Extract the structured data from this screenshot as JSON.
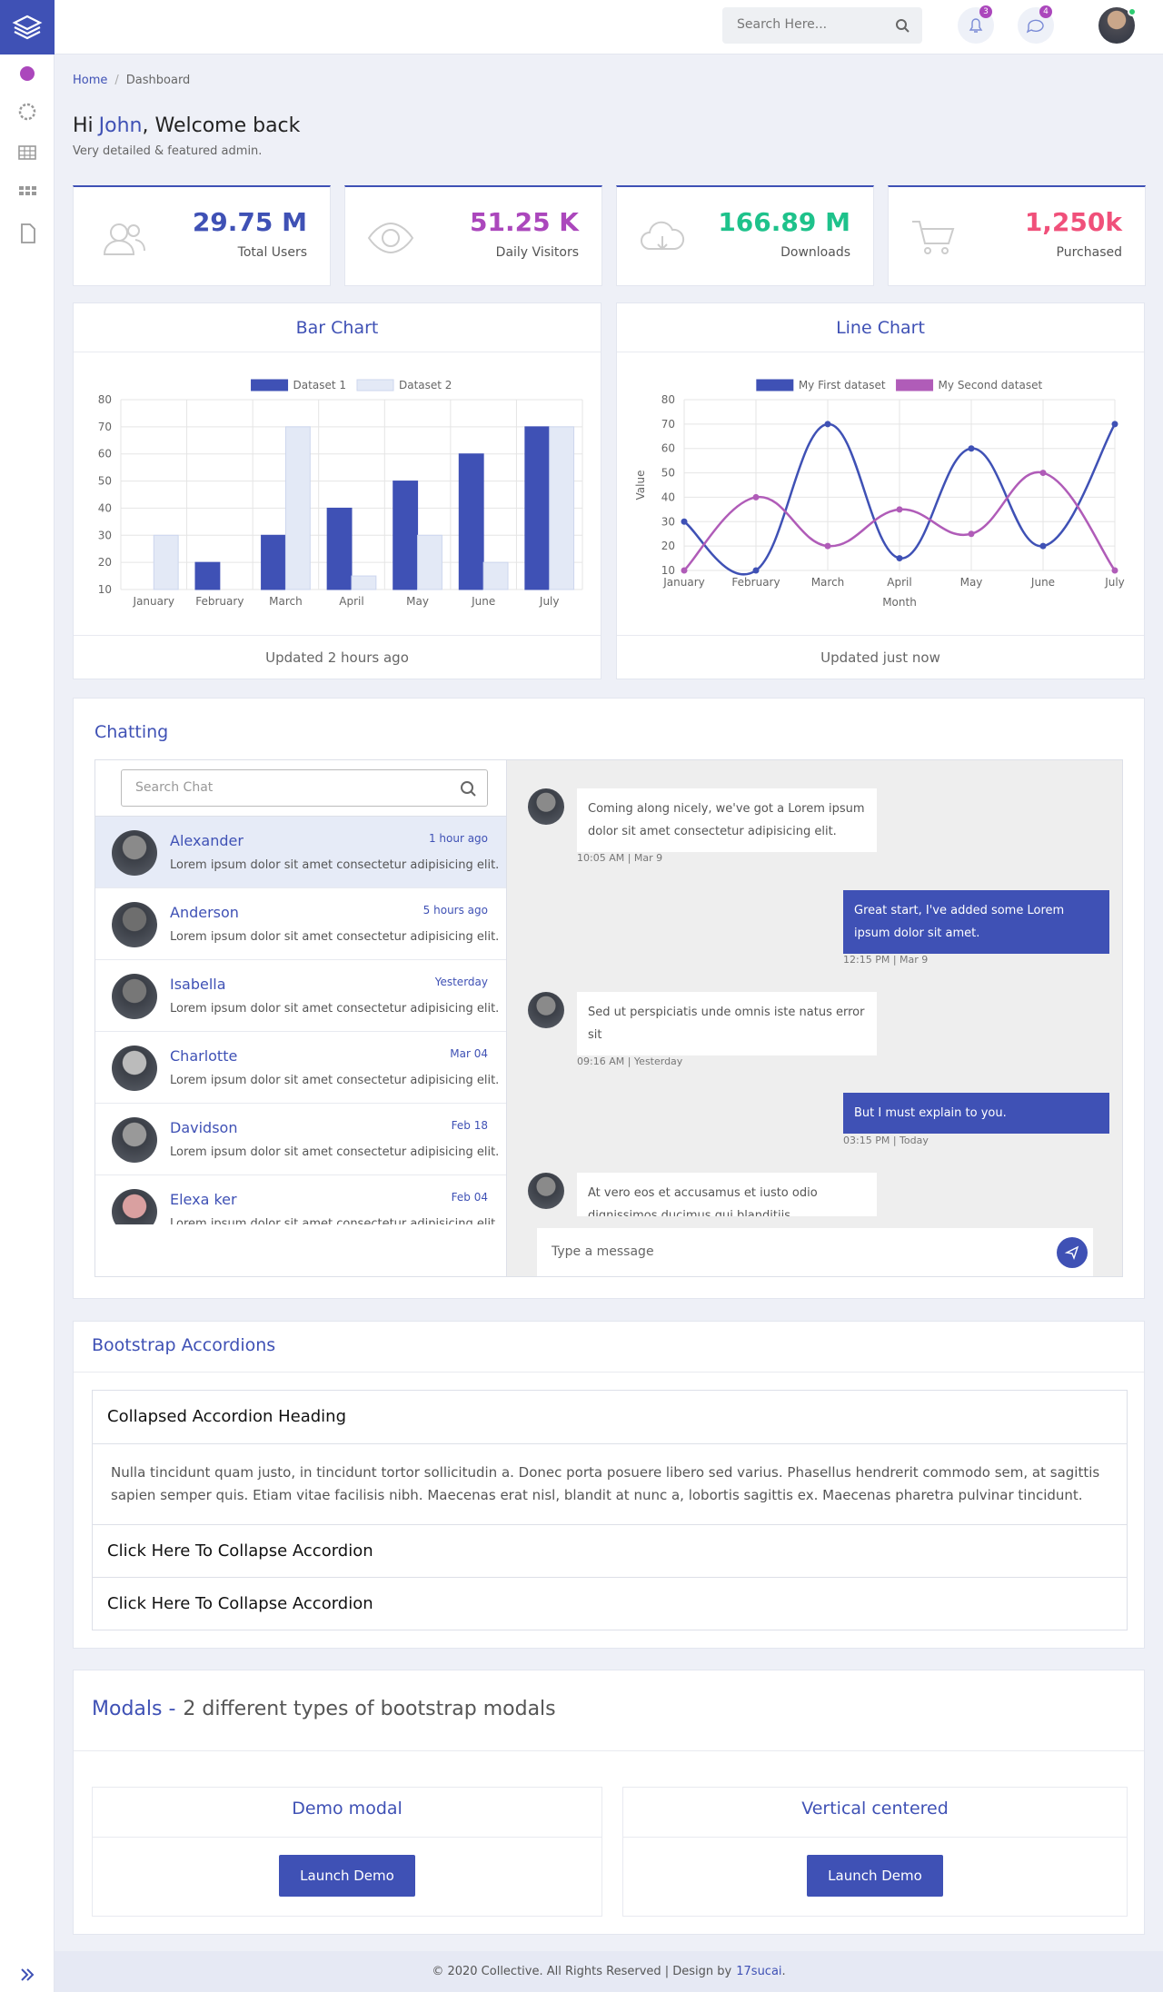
{
  "header": {
    "search_placeholder": "Search Here...",
    "notifications": 3,
    "messages": 4
  },
  "breadcrumb": [
    "Home",
    "Dashboard"
  ],
  "welcome": {
    "greeting": "Hi",
    "name": "John",
    "rest": ", Welcome back",
    "subtitle": "Very detailed & featured admin."
  },
  "stats": [
    {
      "value": "29.75 M",
      "label": "Total Users",
      "color": "#3f51b5"
    },
    {
      "value": "51.25 K",
      "label": "Daily Visitors",
      "color": "#ab47bc"
    },
    {
      "value": "166.89 M",
      "label": "Downloads",
      "color": "#1ec28b"
    },
    {
      "value": "1,250k",
      "label": "Purchased",
      "color": "#f0507a"
    }
  ],
  "chart_data": [
    {
      "type": "bar",
      "title": "Bar Chart",
      "footer": "Updated 2 hours ago",
      "categories": [
        "January",
        "February",
        "March",
        "April",
        "May",
        "June",
        "July"
      ],
      "series": [
        {
          "name": "Dataset 1",
          "color": "#3f51b5",
          "values": [
            10,
            20,
            30,
            40,
            50,
            60,
            70
          ]
        },
        {
          "name": "Dataset 2",
          "color": "#e3e9f6",
          "values": [
            30,
            10,
            70,
            15,
            30,
            20,
            70
          ]
        }
      ],
      "ylim": [
        10,
        80
      ],
      "yticks": [
        10,
        20,
        30,
        40,
        50,
        60,
        70,
        80
      ],
      "grid": true,
      "legend": "top"
    },
    {
      "type": "line",
      "title": "Line Chart",
      "footer": "Updated just now",
      "categories": [
        "January",
        "February",
        "March",
        "April",
        "May",
        "June",
        "July"
      ],
      "x_label": "Month",
      "y_label": "Value",
      "series": [
        {
          "name": "My First dataset",
          "color": "#3f51b5",
          "values": [
            30,
            10,
            70,
            15,
            60,
            20,
            70
          ]
        },
        {
          "name": "My Second dataset",
          "color": "#b05cb8",
          "values": [
            10,
            40,
            20,
            35,
            25,
            50,
            10
          ]
        }
      ],
      "ylim": [
        10,
        80
      ],
      "yticks": [
        10,
        20,
        30,
        40,
        50,
        60,
        70,
        80
      ],
      "grid": true,
      "legend": "top"
    }
  ],
  "chat": {
    "title": "Chatting",
    "search_placeholder": "Search Chat",
    "input_placeholder": "Type a message",
    "contacts": [
      {
        "name": "Alexander",
        "time": "1 hour ago",
        "message": "Lorem ipsum dolor sit amet consectetur adipisicing elit."
      },
      {
        "name": "Anderson",
        "time": "5 hours ago",
        "message": "Lorem ipsum dolor sit amet consectetur adipisicing elit."
      },
      {
        "name": "Isabella",
        "time": "Yesterday",
        "message": "Lorem ipsum dolor sit amet consectetur adipisicing elit."
      },
      {
        "name": "Charlotte",
        "time": "Mar 04",
        "message": "Lorem ipsum dolor sit amet consectetur adipisicing elit."
      },
      {
        "name": "Davidson",
        "time": "Feb 18",
        "message": "Lorem ipsum dolor sit amet consectetur adipisicing elit."
      },
      {
        "name": "Elexa ker",
        "time": "Feb 04",
        "message": "Lorem ipsum dolor sit amet consectetur adipisicing elit."
      }
    ],
    "messages": [
      {
        "side": "left",
        "text": "Coming along nicely, we've got a Lorem ipsum dolor sit amet consectetur adipisicing elit.",
        "time": "10:05 AM | Mar 9"
      },
      {
        "side": "right",
        "text": "Great start, I've added some Lorem ipsum dolor sit amet.",
        "time": "12:15 PM | Mar 9"
      },
      {
        "side": "left",
        "text": "Sed ut perspiciatis unde omnis iste natus error sit",
        "time": "09:16 AM | Yesterday"
      },
      {
        "side": "right",
        "text": "But I must explain to you.",
        "time": "03:15 PM | Today"
      },
      {
        "side": "left",
        "text": "At vero eos et accusamus et iusto odio dignissimos ducimus qui blanditiis praesentium"
      }
    ]
  },
  "accordion": {
    "title": "Bootstrap Accordions",
    "items": [
      {
        "heading": "Collapsed Accordion Heading",
        "body": "Nulla tincidunt quam justo, in tincidunt tortor sollicitudin a. Donec porta posuere libero sed varius. Phasellus hendrerit commodo sem, at sagittis sapien semper quis. Etiam vitae facilisis nibh. Maecenas erat nisl, blandit at nunc a, lobortis sagittis ex. Maecenas pharetra pulvinar tincidunt."
      },
      {
        "heading": "Click Here To Collapse Accordion"
      },
      {
        "heading": "Click Here To Collapse Accordion"
      }
    ]
  },
  "modals": {
    "title": "Modals -",
    "subtitle": "2 different types of bootstrap modals",
    "cards": [
      {
        "title": "Demo modal",
        "button": "Launch Demo"
      },
      {
        "title": "Vertical centered",
        "button": "Launch Demo"
      }
    ]
  },
  "footer": {
    "text": "© 2020 Collective. All Rights Reserved | Design by",
    "link": "17sucai",
    "end": "."
  }
}
